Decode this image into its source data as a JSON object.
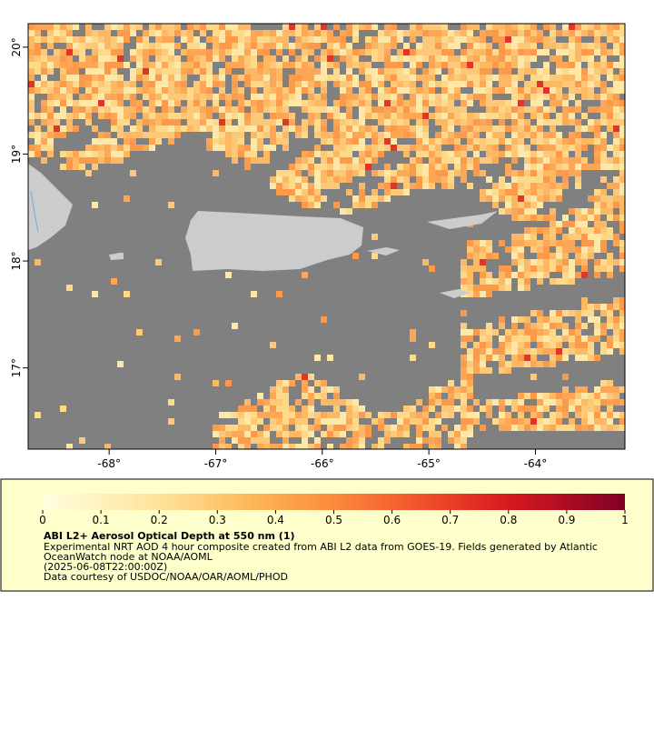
{
  "map": {
    "xlim": [
      -68.76,
      -63.16
    ],
    "ylim": [
      16.24,
      20.22
    ],
    "xticks": [
      {
        "value": -68,
        "label": "-68°"
      },
      {
        "value": -67,
        "label": "-67°"
      },
      {
        "value": -66,
        "label": "-66°"
      },
      {
        "value": -65,
        "label": "-65°"
      },
      {
        "value": -64,
        "label": "-64°"
      }
    ],
    "yticks": [
      {
        "value": 20,
        "label": "20°"
      },
      {
        "value": 19,
        "label": "19°"
      },
      {
        "value": 18,
        "label": "18°"
      },
      {
        "value": 17,
        "label": "17°"
      }
    ]
  },
  "colorbar": {
    "lim": [
      0,
      1
    ],
    "ticks": [
      0,
      0.1,
      0.2,
      0.3,
      0.4,
      0.5,
      0.6,
      0.7,
      0.8,
      0.9,
      1
    ]
  },
  "legend": {
    "title": "ABI L2+ Aerosol Optical Depth at 550 nm (1)",
    "lines": [
      "Experimental NRT AOD 4 hour composite created from ABI L2 data from GOES-19. Fields generated by Atlantic",
      "OceanWatch node at NOAA/AOML",
      "(2025-06-08T22:00:00Z)",
      "Data courtesy of USDOC/NOAA/OAR/AOML/PHOD"
    ]
  }
}
